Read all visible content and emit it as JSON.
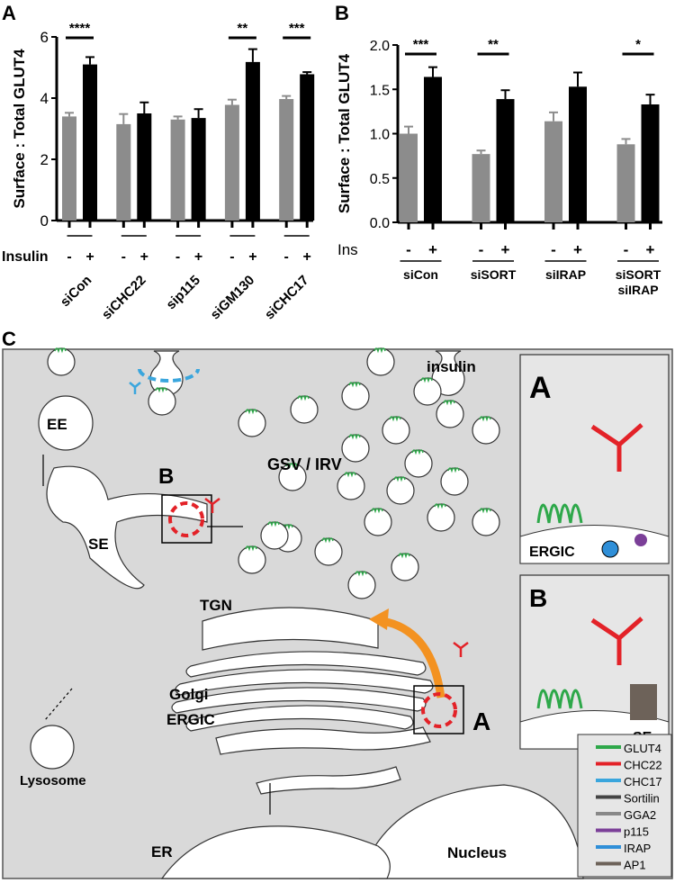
{
  "panels": {
    "a": "A",
    "b": "B",
    "c": "C"
  },
  "chart_data": [
    {
      "type": "bar",
      "panel": "A",
      "ylabel": "Surface : Total GLUT4",
      "ylim": [
        0,
        6
      ],
      "yticks": [
        "0",
        "2",
        "4",
        "6"
      ],
      "treatment_label": "Insulin",
      "treatment_levels": [
        "-",
        "+"
      ],
      "categories": [
        "siCon",
        "siCHC22",
        "sip115",
        "siGM130",
        "siCHC17"
      ],
      "series": [
        {
          "name": "-",
          "color": "#8c8c8c",
          "values": [
            3.4,
            3.15,
            3.3,
            3.78,
            3.97
          ],
          "errors": [
            0.12,
            0.33,
            0.1,
            0.17,
            0.1
          ]
        },
        {
          "name": "+",
          "color": "#000000",
          "values": [
            5.1,
            3.5,
            3.35,
            5.18,
            4.78
          ],
          "errors": [
            0.24,
            0.36,
            0.29,
            0.42,
            0.07
          ]
        }
      ],
      "significance": [
        "****",
        "",
        "",
        "**",
        "***"
      ]
    },
    {
      "type": "bar",
      "panel": "B",
      "ylabel": "Surface : Total  GLUT4",
      "ylim": [
        0,
        2
      ],
      "yticks": [
        "0.0",
        "0.5",
        "1.0",
        "1.5",
        "2.0"
      ],
      "treatment_label": "Ins",
      "treatment_levels": [
        "-",
        "+"
      ],
      "categories": [
        "siCon",
        "siSORT",
        "siIRAP",
        "siSORT siIRAP"
      ],
      "category_lines": [
        [
          "siCon"
        ],
        [
          "siSORT"
        ],
        [
          "siIRAP"
        ],
        [
          "siSORT",
          "siIRAP"
        ]
      ],
      "series": [
        {
          "name": "-",
          "color": "#8c8c8c",
          "values": [
            1.0,
            0.77,
            1.14,
            0.88
          ],
          "errors": [
            0.08,
            0.04,
            0.1,
            0.06
          ]
        },
        {
          "name": "+",
          "color": "#000000",
          "values": [
            1.64,
            1.39,
            1.53,
            1.33
          ],
          "errors": [
            0.11,
            0.1,
            0.16,
            0.11
          ]
        }
      ],
      "significance": [
        "***",
        "**",
        "",
        "*"
      ]
    }
  ],
  "diagram": {
    "labels": {
      "insulin": "insulin",
      "ee": "EE",
      "se": "SE",
      "gsv": "GSV / IRV",
      "tgn": "TGN",
      "golgi": "Golgi",
      "ergic": "ERGIC",
      "er": "ER",
      "nucleus": "Nucleus",
      "lysosome": "Lysosome",
      "box_b": "B",
      "box_a": "A"
    },
    "insets": [
      {
        "letter": "A",
        "label": "ERGIC"
      },
      {
        "letter": "B",
        "label": "SE"
      }
    ],
    "legend": [
      {
        "label": "GLUT4",
        "icon": "glut4-icon",
        "color": "#2ea84a"
      },
      {
        "label": "CHC22",
        "icon": "chc22-triskelion-icon",
        "color": "#e32228"
      },
      {
        "label": "CHC17",
        "icon": "chc17-triskelion-icon",
        "color": "#3aa6dd"
      },
      {
        "label": "Sortilin",
        "icon": "sortilin-icon",
        "color": "#444444"
      },
      {
        "label": "GGA2",
        "icon": "gga2-icon",
        "color": "#888888"
      },
      {
        "label": "p115",
        "icon": "p115-icon",
        "color": "#7b3f98"
      },
      {
        "label": "IRAP",
        "icon": "irap-icon",
        "color": "#2f8fd8"
      },
      {
        "label": "AP1",
        "icon": "ap1-icon",
        "color": "#6d6259"
      }
    ],
    "colors": {
      "background": "#d9d9d9",
      "arrow": "#f39221",
      "chc22": "#e32228",
      "chc17": "#3aa6dd",
      "glut4": "#2ea84a"
    }
  }
}
